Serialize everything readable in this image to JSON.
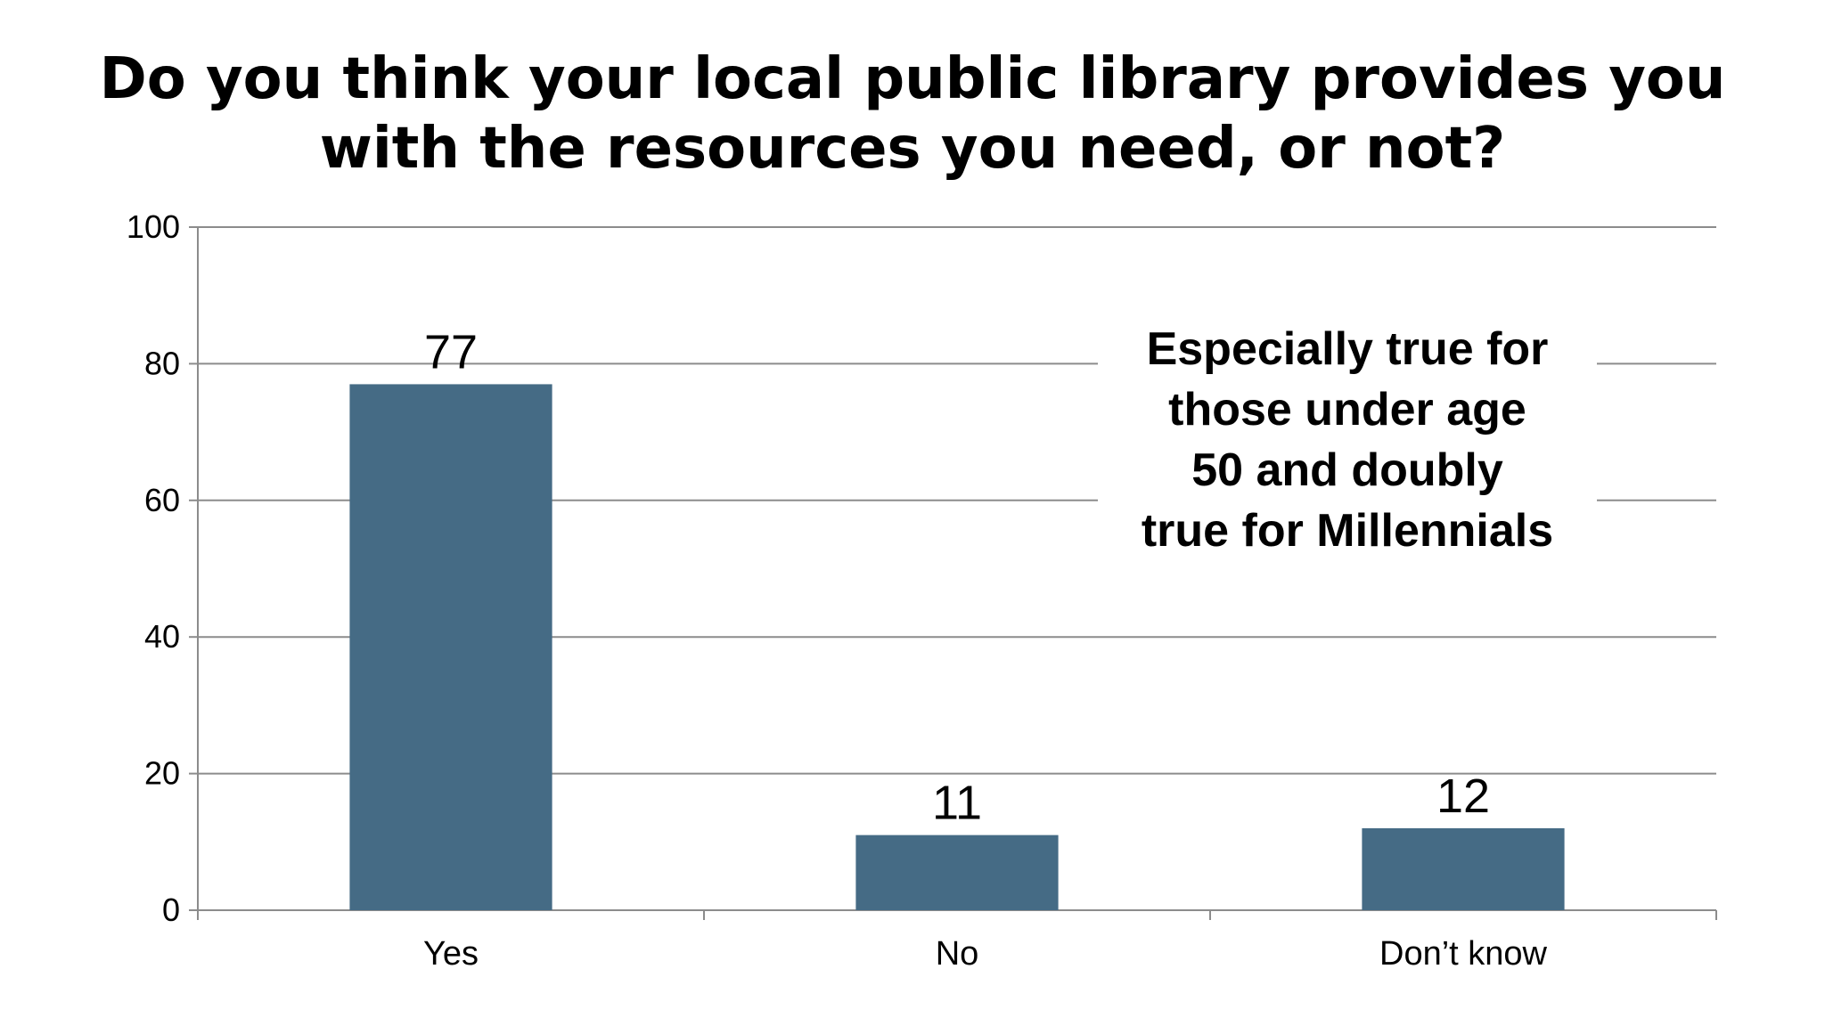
{
  "chart_data": {
    "type": "bar",
    "title_lines": [
      "Do you think your local public library provides you",
      "with the resources you need, or not?"
    ],
    "categories": [
      "Yes",
      "No",
      "Don’t know"
    ],
    "values": [
      77,
      11,
      12
    ],
    "ylim": [
      0,
      100
    ],
    "yticks": [
      0,
      20,
      40,
      60,
      80,
      100
    ],
    "grid": true,
    "bar_color": "#456b85",
    "gridline_color": "#8c8c8c",
    "annotation_lines": [
      "Especially true for",
      "those under age",
      "50 and doubly",
      "true for Millennials"
    ]
  }
}
